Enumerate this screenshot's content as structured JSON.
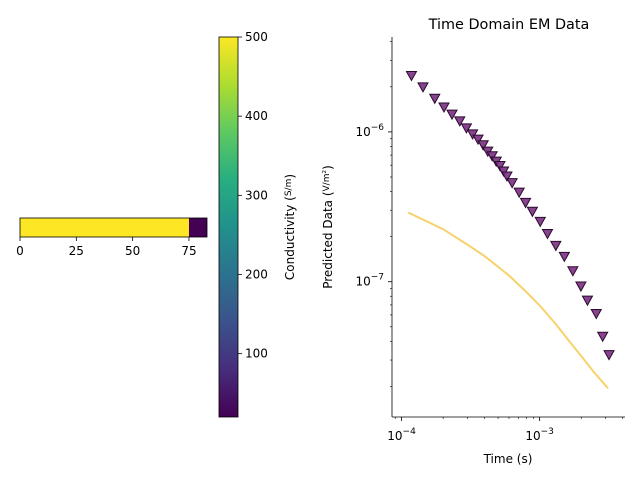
{
  "chart_data": [
    {
      "type": "heatmap",
      "title": "",
      "xlabel": "",
      "ylabel": "",
      "xlim": [
        0,
        83
      ],
      "x_ticks": [
        0,
        25,
        50,
        75
      ],
      "cells": [
        {
          "x0": 0,
          "x1": 75,
          "value": 500
        },
        {
          "x0": 75,
          "x1": 83,
          "value": 20
        }
      ],
      "colorbar": {
        "label": "Conductivity (S/m)",
        "range": [
          20,
          500
        ],
        "ticks": [
          100,
          200,
          300,
          400,
          500
        ],
        "colormap": "viridis"
      }
    },
    {
      "type": "scatter",
      "title": "Time Domain EM Data",
      "xlabel": "Time (s)",
      "ylabel": "Predicted Data (V/m²)",
      "xscale": "log",
      "yscale": "log",
      "xlim": [
        8.53e-05,
        0.00415
      ],
      "ylim": [
        1.25e-08,
        4.3e-06
      ],
      "x_ticks": [
        {
          "value": 0.0001,
          "base": "10",
          "exp": "−4"
        },
        {
          "value": 0.001,
          "base": "10",
          "exp": "−3"
        }
      ],
      "y_ticks": [
        {
          "value": 1e-07,
          "base": "10",
          "exp": "−7"
        },
        {
          "value": 1e-06,
          "base": "10",
          "exp": "−6"
        }
      ],
      "series": [
        {
          "type": "scatter",
          "marker": "triangle-down",
          "color": "#7a2f82",
          "x": [
            0.000118,
            0.000143,
            0.000174,
            0.000203,
            0.000232,
            0.000264,
            0.000295,
            0.000327,
            0.000358,
            0.00039,
            0.000421,
            0.000453,
            0.000485,
            0.000516,
            0.000548,
            0.00058,
            0.000632,
            0.000711,
            0.000791,
            0.000886,
            0.00101,
            0.00114,
            0.00131,
            0.00151,
            0.00174,
            0.00199,
            0.00222,
            0.00257,
            0.00286,
            0.00318
          ],
          "y": [
            2.37e-06,
            1.99e-06,
            1.67e-06,
            1.46e-06,
            1.31e-06,
            1.18e-06,
            1.06e-06,
            9.67e-07,
            8.92e-07,
            8.17e-07,
            7.42e-07,
            6.91e-07,
            6.36e-07,
            5.94e-07,
            5.46e-07,
            5.06e-07,
            4.57e-07,
            3.95e-07,
            3.37e-07,
            2.94e-07,
            2.52e-07,
            2.09e-07,
            1.74e-07,
            1.47e-07,
            1.18e-07,
            9.32e-08,
            7.5e-08,
            6.11e-08,
            4.31e-08,
            3.25e-08
          ]
        },
        {
          "type": "line",
          "color": "#f7d26a",
          "x": [
            0.000113,
            0.0002,
            0.0003,
            0.0004,
            0.0006,
            0.0008,
            0.001,
            0.0013,
            0.0016,
            0.002,
            0.0025,
            0.0031
          ],
          "y": [
            2.88e-07,
            2.24e-07,
            1.77e-07,
            1.48e-07,
            1.1e-07,
            8.55e-08,
            6.95e-08,
            5.25e-08,
            4.12e-08,
            3.19e-08,
            2.46e-08,
            1.96e-08
          ]
        }
      ]
    }
  ]
}
